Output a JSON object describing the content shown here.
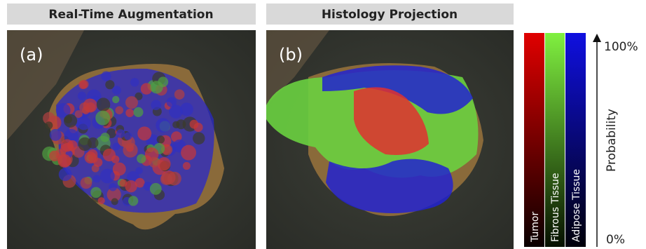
{
  "panels": [
    {
      "title": "Real-Time Augmentation",
      "label": "(a)"
    },
    {
      "title": "Histology Projection",
      "label": "(b)"
    }
  ],
  "legend": {
    "classes": [
      "Tumor",
      "Fibrous Tissue",
      "Adipose Tissue"
    ],
    "axis_label": "Probability",
    "top_label": "100%",
    "bottom_label": "0%"
  }
}
